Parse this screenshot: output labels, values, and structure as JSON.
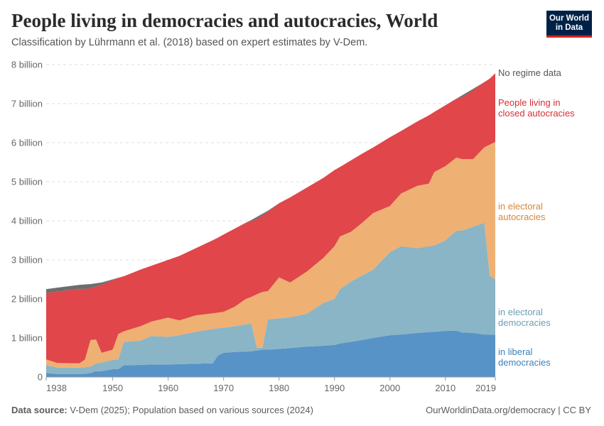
{
  "header": {
    "title": "People living in democracies and autocracies, World",
    "subtitle": "Classification by Lührmann et al. (2018) based on expert estimates by V-Dem.",
    "logo": "Our World in Data",
    "logo_line1": "Our World",
    "logo_line2": "in Data"
  },
  "footer": {
    "source_label": "Data source:",
    "source_text": "V-Dem (2025); Population based on various sources (2024)",
    "link": "OurWorldinData.org/democracy | CC BY"
  },
  "chart_data": {
    "type": "area",
    "stacked": true,
    "title": "People living in democracies and autocracies, World",
    "ylim": [
      0,
      8000000000
    ],
    "xlim": [
      1938,
      2019
    ],
    "y_ticks": [
      {
        "v": 0,
        "label": "0"
      },
      {
        "v": 1,
        "label": "1 billion"
      },
      {
        "v": 2,
        "label": "2 billion"
      },
      {
        "v": 3,
        "label": "3 billion"
      },
      {
        "v": 4,
        "label": "4 billion"
      },
      {
        "v": 5,
        "label": "5 billion"
      },
      {
        "v": 6,
        "label": "6 billion"
      },
      {
        "v": 7,
        "label": "7 billion"
      },
      {
        "v": 8,
        "label": "8 billion"
      }
    ],
    "x_ticks": [
      {
        "v": 1938,
        "label": "1938"
      },
      {
        "v": 1950,
        "label": "1950"
      },
      {
        "v": 1960,
        "label": "1960"
      },
      {
        "v": 1970,
        "label": "1970"
      },
      {
        "v": 1980,
        "label": "1980"
      },
      {
        "v": 1990,
        "label": "1990"
      },
      {
        "v": 2000,
        "label": "2000"
      },
      {
        "v": 2010,
        "label": "2010"
      },
      {
        "v": 2019,
        "label": "2019"
      }
    ],
    "grid": "horizontal dashed",
    "legend": "right inline labels",
    "unit": "billion",
    "x": [
      1938,
      1940,
      1944,
      1945,
      1946,
      1947,
      1948,
      1950,
      1951,
      1952,
      1955,
      1957,
      1960,
      1962,
      1965,
      1968,
      1969,
      1970,
      1972,
      1974,
      1975,
      1976,
      1977,
      1978,
      1980,
      1982,
      1985,
      1988,
      1990,
      1991,
      1993,
      1995,
      1997,
      2000,
      2002,
      2005,
      2007,
      2008,
      2010,
      2012,
      2013,
      2015,
      2017,
      2018,
      2019
    ],
    "series": [
      {
        "name": "in liberal democracies",
        "label_lines": [
          "in liberal",
          "democracies"
        ],
        "color": "#5793c6",
        "label_color": "#3b80bd",
        "values": [
          0.1,
          0.08,
          0.08,
          0.08,
          0.1,
          0.15,
          0.15,
          0.2,
          0.2,
          0.3,
          0.31,
          0.32,
          0.32,
          0.33,
          0.34,
          0.35,
          0.55,
          0.62,
          0.64,
          0.65,
          0.66,
          0.68,
          0.7,
          0.7,
          0.72,
          0.74,
          0.78,
          0.8,
          0.82,
          0.86,
          0.9,
          0.95,
          1.0,
          1.07,
          1.09,
          1.13,
          1.15,
          1.16,
          1.18,
          1.19,
          1.14,
          1.13,
          1.09,
          1.09,
          1.08
        ]
      },
      {
        "name": "in electoral democracies",
        "label_lines": [
          "in electoral",
          "democracies"
        ],
        "color": "#89b5c6",
        "label_color": "#6b9fb3",
        "values": [
          0.2,
          0.16,
          0.16,
          0.17,
          0.17,
          0.2,
          0.22,
          0.24,
          0.25,
          0.6,
          0.62,
          0.73,
          0.71,
          0.74,
          0.82,
          0.88,
          0.7,
          0.64,
          0.66,
          0.7,
          0.71,
          0.07,
          0.05,
          0.78,
          0.78,
          0.79,
          0.84,
          1.1,
          1.18,
          1.39,
          1.55,
          1.65,
          1.75,
          2.13,
          2.26,
          2.17,
          2.2,
          2.21,
          2.32,
          2.56,
          2.61,
          2.72,
          2.86,
          1.51,
          1.42
        ]
      },
      {
        "name": "in electoral autocracies",
        "label_lines": [
          "in electoral",
          "autocracies"
        ],
        "color": "#efb073",
        "label_color": "#d5863a",
        "values": [
          0.15,
          0.12,
          0.11,
          0.2,
          0.68,
          0.61,
          0.25,
          0.26,
          0.65,
          0.27,
          0.37,
          0.37,
          0.49,
          0.38,
          0.42,
          0.4,
          0.4,
          0.41,
          0.5,
          0.65,
          0.68,
          1.37,
          1.43,
          0.72,
          1.05,
          0.89,
          1.08,
          1.15,
          1.35,
          1.35,
          1.27,
          1.35,
          1.45,
          1.18,
          1.35,
          1.6,
          1.6,
          1.88,
          1.9,
          1.87,
          1.83,
          1.73,
          1.93,
          3.35,
          3.52
        ]
      },
      {
        "name": "People living in closed autocracies",
        "label_lines": [
          "People living in",
          "closed autocracies"
        ],
        "color": "#e0464a",
        "label_color": "#d62e33",
        "values": [
          1.7,
          1.83,
          1.91,
          1.8,
          1.33,
          1.36,
          1.74,
          1.78,
          1.44,
          1.41,
          1.45,
          1.43,
          1.48,
          1.65,
          1.72,
          1.87,
          1.92,
          1.98,
          2.0,
          1.95,
          1.94,
          1.93,
          1.95,
          2.03,
          1.9,
          2.18,
          2.15,
          2.05,
          1.95,
          1.78,
          1.83,
          1.77,
          1.68,
          1.76,
          1.6,
          1.65,
          1.75,
          1.54,
          1.56,
          1.51,
          1.58,
          1.77,
          1.67,
          1.69,
          1.76
        ]
      },
      {
        "name": "No regime data",
        "label_lines": [
          "No regime data"
        ],
        "color": "#6d6d6d",
        "label_color": "#555555",
        "values": [
          0.1,
          0.1,
          0.1,
          0.12,
          0.1,
          0.08,
          0.06,
          0.02,
          0,
          0,
          0,
          0,
          0,
          0,
          0,
          0,
          0,
          0,
          0,
          0,
          0.03,
          0.05,
          0.05,
          0.03,
          0,
          0,
          0,
          0,
          0,
          0,
          0,
          0,
          0,
          0,
          0,
          0,
          0,
          0,
          0,
          0,
          0.05,
          0.03,
          0,
          0,
          0
        ]
      }
    ]
  }
}
